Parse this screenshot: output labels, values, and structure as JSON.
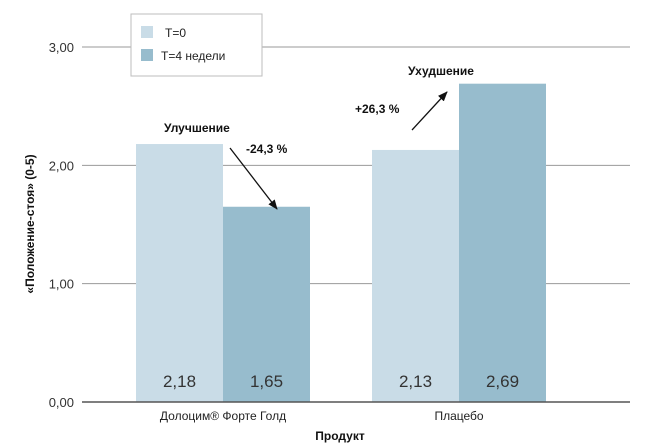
{
  "chart_data": {
    "type": "bar",
    "xlabel": "Продукт",
    "ylabel": "«Положение-стоя» (0-5)",
    "ylim": [
      0,
      3
    ],
    "yticks": [
      "0,00",
      "1,00",
      "2,00",
      "3,00"
    ],
    "grid": true,
    "legend_position": "top-left",
    "categories": [
      "Долоцим® Форте Голд",
      "Плацебо"
    ],
    "series": [
      {
        "name": "T=0",
        "values": [
          2.18,
          2.13
        ],
        "labels": [
          "2,18",
          "2,13"
        ],
        "color": "#c9dce7"
      },
      {
        "name": "T=4 недели",
        "values": [
          1.65,
          2.69
        ],
        "labels": [
          "1,65",
          "2,69"
        ],
        "color": "#97bccd"
      }
    ],
    "annotations": [
      {
        "title": "Улучшение",
        "change": "-24,3 %"
      },
      {
        "title": "Ухудшение",
        "change": "+26,3 %"
      }
    ]
  }
}
